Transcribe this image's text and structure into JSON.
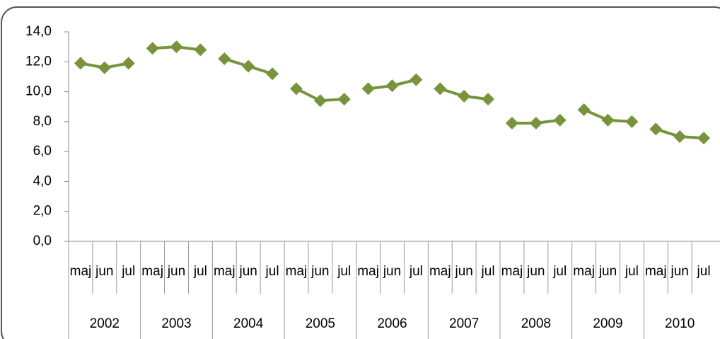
{
  "chart_data": {
    "type": "line",
    "categories": [
      "maj",
      "jun",
      "jul",
      "maj",
      "jun",
      "jul",
      "maj",
      "jun",
      "jul",
      "maj",
      "jun",
      "jul",
      "maj",
      "jun",
      "jul",
      "maj",
      "jun",
      "jul",
      "maj",
      "jun",
      "jul",
      "maj",
      "jun",
      "jul",
      "maj",
      "jun",
      "jul"
    ],
    "x_groups": [
      "2002",
      "2003",
      "2004",
      "2005",
      "2006",
      "2007",
      "2008",
      "2009",
      "2010"
    ],
    "series": [
      {
        "color": "#77933c",
        "values": [
          11.9,
          11.6,
          11.9,
          12.9,
          13.0,
          12.8,
          12.2,
          11.7,
          11.2,
          10.2,
          9.4,
          9.5,
          10.2,
          10.4,
          10.8,
          10.2,
          9.7,
          9.5,
          7.9,
          7.9,
          8.1,
          8.8,
          8.1,
          8.0,
          7.5,
          7.0,
          6.9
        ]
      }
    ],
    "ylim": [
      0,
      14
    ],
    "yticks": [
      {
        "value": 0,
        "label": "0,0"
      },
      {
        "value": 2,
        "label": "2,0"
      },
      {
        "value": 4,
        "label": "4,0"
      },
      {
        "value": 6,
        "label": "6,0"
      },
      {
        "value": 8,
        "label": "8,0"
      },
      {
        "value": 10,
        "label": "10,0"
      },
      {
        "value": 12,
        "label": "12,0"
      },
      {
        "value": 14,
        "label": "14,0"
      }
    ],
    "marker": "diamond"
  }
}
